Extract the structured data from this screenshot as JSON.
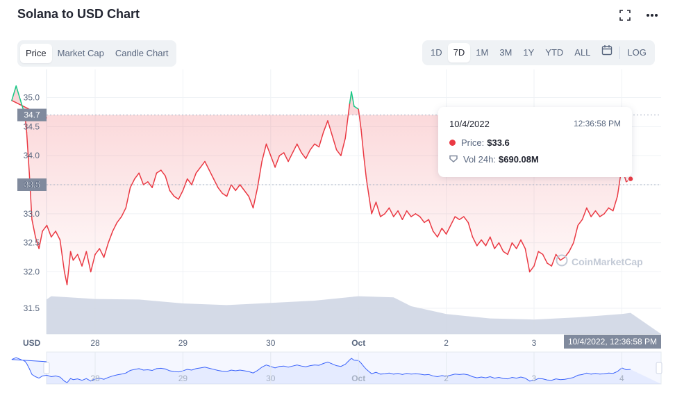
{
  "title": "Solana to USD Chart",
  "icons": [
    "fullscreen-icon",
    "more-icon",
    "calendar-icon"
  ],
  "tabs": [
    {
      "label": "Price",
      "active": true
    },
    {
      "label": "Market Cap",
      "active": false
    },
    {
      "label": "Candle Chart",
      "active": false
    }
  ],
  "ranges": [
    {
      "label": "1D",
      "active": false
    },
    {
      "label": "7D",
      "active": true
    },
    {
      "label": "1M",
      "active": false
    },
    {
      "label": "3M",
      "active": false
    },
    {
      "label": "1Y",
      "active": false
    },
    {
      "label": "YTD",
      "active": false
    },
    {
      "label": "ALL",
      "active": false
    }
  ],
  "log_label": "LOG",
  "tooltip": {
    "date": "10/4/2022",
    "time": "12:36:58 PM",
    "price_label": "Price:",
    "price_value": "$33.6",
    "vol_label": "Vol 24h:",
    "vol_value": "$690.08M"
  },
  "hover_time_label": "10/4/2022, 12:36:58 PM",
  "watermark": "CoinMarketCap",
  "colors": {
    "up": "#16c784",
    "down": "#ea3943",
    "volume": "#cfd6e4",
    "navigator": "#3861fb"
  },
  "chart_data": {
    "type": "line",
    "ylabel": "USD",
    "ylim": [
      31.6,
      35.4
    ],
    "yticks": [
      "35.0",
      "34.5",
      "34.0",
      "33.5",
      "33.0",
      "32.5",
      "32.0",
      "31.5"
    ],
    "ytick_values": [
      35.0,
      34.5,
      34.0,
      33.5,
      33.0,
      32.5,
      32.0,
      31.5
    ],
    "reference_lines": [
      {
        "label": "34.7",
        "value": 34.7
      },
      {
        "label": "33.5",
        "value": 33.5
      }
    ],
    "x_ticks": [
      {
        "label": "28",
        "x": 1.0
      },
      {
        "label": "29",
        "x": 2.0
      },
      {
        "label": "30",
        "x": 3.0
      },
      {
        "label": "Oct",
        "x": 4.0
      },
      {
        "label": "2",
        "x": 5.0
      },
      {
        "label": "3",
        "x": 6.0
      },
      {
        "label": "4",
        "x": 7.0
      }
    ],
    "x_range": [
      0.0,
      7.0
    ],
    "series": [
      {
        "points": [
          [
            0.0,
            34.65
          ],
          [
            0.05,
            34.95
          ],
          [
            0.1,
            35.2
          ],
          [
            0.15,
            34.95
          ],
          [
            0.2,
            34.7
          ],
          [
            0.22,
            34.4
          ],
          [
            0.25,
            33.7
          ],
          [
            0.28,
            32.9
          ],
          [
            0.32,
            32.6
          ],
          [
            0.36,
            32.4
          ],
          [
            0.4,
            32.7
          ],
          [
            0.45,
            32.8
          ],
          [
            0.5,
            32.6
          ],
          [
            0.55,
            32.7
          ],
          [
            0.6,
            32.55
          ],
          [
            0.65,
            32.0
          ],
          [
            0.68,
            31.78
          ],
          [
            0.72,
            32.35
          ],
          [
            0.75,
            32.2
          ],
          [
            0.8,
            32.3
          ],
          [
            0.85,
            32.1
          ],
          [
            0.9,
            32.35
          ],
          [
            0.95,
            32.0
          ],
          [
            1.0,
            32.3
          ],
          [
            1.05,
            32.4
          ],
          [
            1.1,
            32.25
          ],
          [
            1.15,
            32.5
          ],
          [
            1.2,
            32.7
          ],
          [
            1.25,
            32.85
          ],
          [
            1.3,
            32.95
          ],
          [
            1.35,
            33.1
          ],
          [
            1.4,
            33.45
          ],
          [
            1.45,
            33.6
          ],
          [
            1.5,
            33.7
          ],
          [
            1.55,
            33.5
          ],
          [
            1.6,
            33.55
          ],
          [
            1.65,
            33.45
          ],
          [
            1.7,
            33.7
          ],
          [
            1.75,
            33.75
          ],
          [
            1.8,
            33.65
          ],
          [
            1.85,
            33.4
          ],
          [
            1.9,
            33.3
          ],
          [
            1.95,
            33.25
          ],
          [
            2.0,
            33.4
          ],
          [
            2.05,
            33.6
          ],
          [
            2.1,
            33.5
          ],
          [
            2.15,
            33.7
          ],
          [
            2.2,
            33.8
          ],
          [
            2.25,
            33.9
          ],
          [
            2.3,
            33.75
          ],
          [
            2.35,
            33.6
          ],
          [
            2.4,
            33.45
          ],
          [
            2.45,
            33.35
          ],
          [
            2.5,
            33.3
          ],
          [
            2.55,
            33.5
          ],
          [
            2.6,
            33.4
          ],
          [
            2.65,
            33.5
          ],
          [
            2.7,
            33.4
          ],
          [
            2.75,
            33.3
          ],
          [
            2.8,
            33.1
          ],
          [
            2.85,
            33.45
          ],
          [
            2.9,
            33.9
          ],
          [
            2.95,
            34.2
          ],
          [
            3.0,
            34.0
          ],
          [
            3.05,
            33.8
          ],
          [
            3.1,
            34.0
          ],
          [
            3.15,
            34.05
          ],
          [
            3.2,
            33.9
          ],
          [
            3.25,
            34.05
          ],
          [
            3.3,
            34.2
          ],
          [
            3.35,
            34.05
          ],
          [
            3.4,
            33.95
          ],
          [
            3.45,
            34.1
          ],
          [
            3.5,
            34.2
          ],
          [
            3.55,
            34.15
          ],
          [
            3.6,
            34.4
          ],
          [
            3.65,
            34.6
          ],
          [
            3.7,
            34.35
          ],
          [
            3.75,
            34.1
          ],
          [
            3.8,
            34.0
          ],
          [
            3.85,
            34.3
          ],
          [
            3.9,
            34.9
          ],
          [
            3.92,
            35.1
          ],
          [
            3.95,
            34.85
          ],
          [
            4.0,
            34.8
          ],
          [
            4.03,
            34.45
          ],
          [
            4.06,
            34.0
          ],
          [
            4.09,
            33.6
          ],
          [
            4.12,
            33.3
          ],
          [
            4.15,
            33.0
          ],
          [
            4.2,
            33.2
          ],
          [
            4.25,
            32.95
          ],
          [
            4.3,
            33.0
          ],
          [
            4.35,
            33.1
          ],
          [
            4.4,
            32.95
          ],
          [
            4.45,
            33.05
          ],
          [
            4.5,
            32.9
          ],
          [
            4.55,
            33.05
          ],
          [
            4.6,
            32.95
          ],
          [
            4.65,
            33.0
          ],
          [
            4.7,
            32.95
          ],
          [
            4.75,
            32.85
          ],
          [
            4.8,
            32.9
          ],
          [
            4.85,
            32.7
          ],
          [
            4.9,
            32.6
          ],
          [
            4.95,
            32.75
          ],
          [
            5.0,
            32.65
          ],
          [
            5.05,
            32.8
          ],
          [
            5.1,
            32.95
          ],
          [
            5.15,
            32.9
          ],
          [
            5.2,
            32.95
          ],
          [
            5.25,
            32.85
          ],
          [
            5.3,
            32.6
          ],
          [
            5.35,
            32.45
          ],
          [
            5.4,
            32.55
          ],
          [
            5.45,
            32.45
          ],
          [
            5.5,
            32.6
          ],
          [
            5.55,
            32.4
          ],
          [
            5.6,
            32.5
          ],
          [
            5.65,
            32.35
          ],
          [
            5.7,
            32.3
          ],
          [
            5.75,
            32.5
          ],
          [
            5.8,
            32.4
          ],
          [
            5.85,
            32.55
          ],
          [
            5.9,
            32.4
          ],
          [
            5.95,
            32.0
          ],
          [
            6.0,
            32.1
          ],
          [
            6.05,
            32.35
          ],
          [
            6.1,
            32.3
          ],
          [
            6.15,
            32.15
          ],
          [
            6.2,
            32.1
          ],
          [
            6.25,
            32.3
          ],
          [
            6.3,
            32.2
          ],
          [
            6.35,
            32.25
          ],
          [
            6.4,
            32.35
          ],
          [
            6.45,
            32.5
          ],
          [
            6.5,
            32.8
          ],
          [
            6.55,
            32.9
          ],
          [
            6.6,
            33.1
          ],
          [
            6.65,
            32.95
          ],
          [
            6.7,
            33.05
          ],
          [
            6.75,
            32.95
          ],
          [
            6.8,
            33.0
          ],
          [
            6.85,
            33.1
          ],
          [
            6.9,
            33.05
          ],
          [
            6.95,
            33.3
          ],
          [
            7.0,
            33.8
          ],
          [
            7.05,
            33.55
          ],
          [
            7.1,
            33.6
          ]
        ]
      }
    ],
    "volume_profile": [
      [
        0.0,
        0.62
      ],
      [
        0.5,
        0.68
      ],
      [
        1.0,
        0.63
      ],
      [
        1.5,
        0.62
      ],
      [
        2.0,
        0.55
      ],
      [
        2.5,
        0.52
      ],
      [
        3.0,
        0.56
      ],
      [
        3.5,
        0.6
      ],
      [
        4.0,
        0.68
      ],
      [
        4.4,
        0.66
      ],
      [
        4.6,
        0.5
      ],
      [
        5.0,
        0.36
      ],
      [
        5.5,
        0.28
      ],
      [
        6.0,
        0.26
      ],
      [
        6.5,
        0.3
      ],
      [
        7.0,
        0.36
      ],
      [
        7.1,
        0.38
      ]
    ]
  }
}
